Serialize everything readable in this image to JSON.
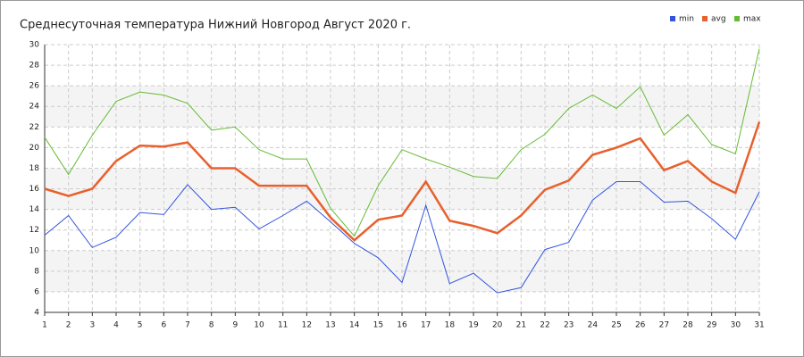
{
  "chart_data": {
    "type": "line",
    "title": "Среднесуточная температура Нижний Новгород  Август 2020 г.",
    "categories": [
      "1",
      "2",
      "3",
      "4",
      "5",
      "6",
      "7",
      "8",
      "9",
      "10",
      "11",
      "12",
      "13",
      "14",
      "15",
      "16",
      "17",
      "18",
      "19",
      "20",
      "21",
      "22",
      "23",
      "24",
      "25",
      "26",
      "27",
      "28",
      "29",
      "30",
      "31"
    ],
    "series": [
      {
        "name": "min",
        "color": "#3355dd",
        "values": [
          11.5,
          13.4,
          10.3,
          11.3,
          13.7,
          13.5,
          16.4,
          14.0,
          14.2,
          12.1,
          13.4,
          14.8,
          12.8,
          10.7,
          9.3,
          6.9,
          14.4,
          6.8,
          7.8,
          5.9,
          6.4,
          10.1,
          10.8,
          14.9,
          16.7,
          16.7,
          14.7,
          14.8,
          13.1,
          11.1,
          15.7
        ]
      },
      {
        "name": "avg",
        "color": "#e8602c",
        "values": [
          16.0,
          15.3,
          16.0,
          18.7,
          20.2,
          20.1,
          20.5,
          18.0,
          18.0,
          16.3,
          16.3,
          16.3,
          13.2,
          11.0,
          13.0,
          13.4,
          16.7,
          12.9,
          12.4,
          11.7,
          13.4,
          15.9,
          16.8,
          19.3,
          20.0,
          20.9,
          17.8,
          18.7,
          16.7,
          15.6,
          22.5
        ]
      },
      {
        "name": "max",
        "color": "#66bb33",
        "values": [
          21.0,
          17.4,
          21.2,
          24.5,
          25.4,
          25.1,
          24.3,
          21.7,
          22.0,
          19.8,
          18.9,
          18.9,
          14.1,
          11.4,
          16.3,
          19.8,
          18.9,
          18.1,
          17.2,
          17.0,
          19.8,
          21.3,
          23.8,
          25.1,
          23.8,
          25.9,
          21.2,
          23.2,
          20.3,
          19.4,
          29.6
        ]
      }
    ],
    "ylim": [
      4,
      30
    ],
    "yticks": [
      4,
      6,
      8,
      10,
      12,
      14,
      16,
      18,
      20,
      22,
      24,
      26,
      28,
      30
    ],
    "grid": true,
    "legend": "top-right"
  }
}
